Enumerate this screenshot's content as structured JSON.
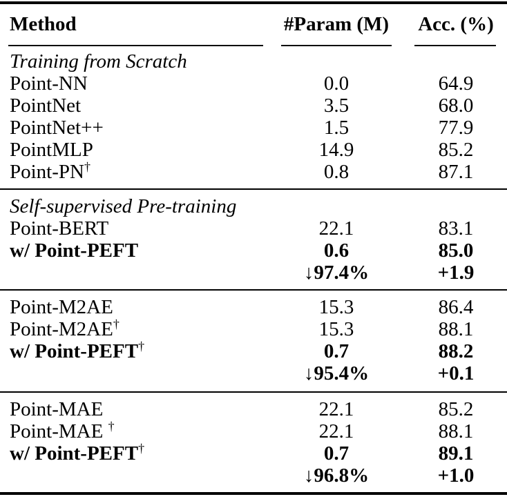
{
  "table": {
    "columns": {
      "method": "Method",
      "param": "#Param (M)",
      "acc": "Acc. (%)"
    },
    "groups": [
      {
        "title": "Training from Scratch",
        "rows": [
          {
            "method": "Point-NN",
            "param": "0.0",
            "acc": "64.9"
          },
          {
            "method": "PointNet",
            "param": "3.5",
            "acc": "68.0"
          },
          {
            "method": "PointNet++",
            "param": "1.5",
            "acc": "77.9"
          },
          {
            "method": "PointMLP",
            "param": "14.9",
            "acc": "85.2"
          },
          {
            "method": "Point-PN",
            "sup": "†",
            "param": "0.8",
            "acc": "87.1"
          }
        ]
      },
      {
        "title": "Self-supervised Pre-training",
        "rows": [
          {
            "method": "Point-BERT",
            "param": "22.1",
            "acc": "83.1"
          },
          {
            "method": "w/ Point-PEFT",
            "param": "0.6",
            "acc": "85.0"
          },
          {
            "method": "",
            "arrow": "↓",
            "param": "97.4%",
            "acc": "+1.9"
          }
        ]
      },
      {
        "rows": [
          {
            "method": "Point-M2AE",
            "param": "15.3",
            "acc": "86.4"
          },
          {
            "method": "Point-M2AE",
            "sup": "†",
            "param": "15.3",
            "acc": "88.1"
          },
          {
            "method": "w/ Point-PEFT",
            "sup": "†",
            "param": "0.7",
            "acc": "88.2"
          },
          {
            "method": "",
            "arrow": "↓",
            "param": "95.4%",
            "acc": "+0.1"
          }
        ]
      },
      {
        "rows": [
          {
            "method": "Point-MAE",
            "param": "22.1",
            "acc": "85.2"
          },
          {
            "method": "Point-MAE ",
            "sup": "†",
            "param": "22.1",
            "acc": "88.1"
          },
          {
            "method": "w/ Point-PEFT",
            "sup": "†",
            "param": "0.7",
            "acc": "89.1"
          },
          {
            "method": "",
            "arrow": "↓",
            "param": "96.8%",
            "acc": "+1.0"
          }
        ]
      }
    ]
  }
}
